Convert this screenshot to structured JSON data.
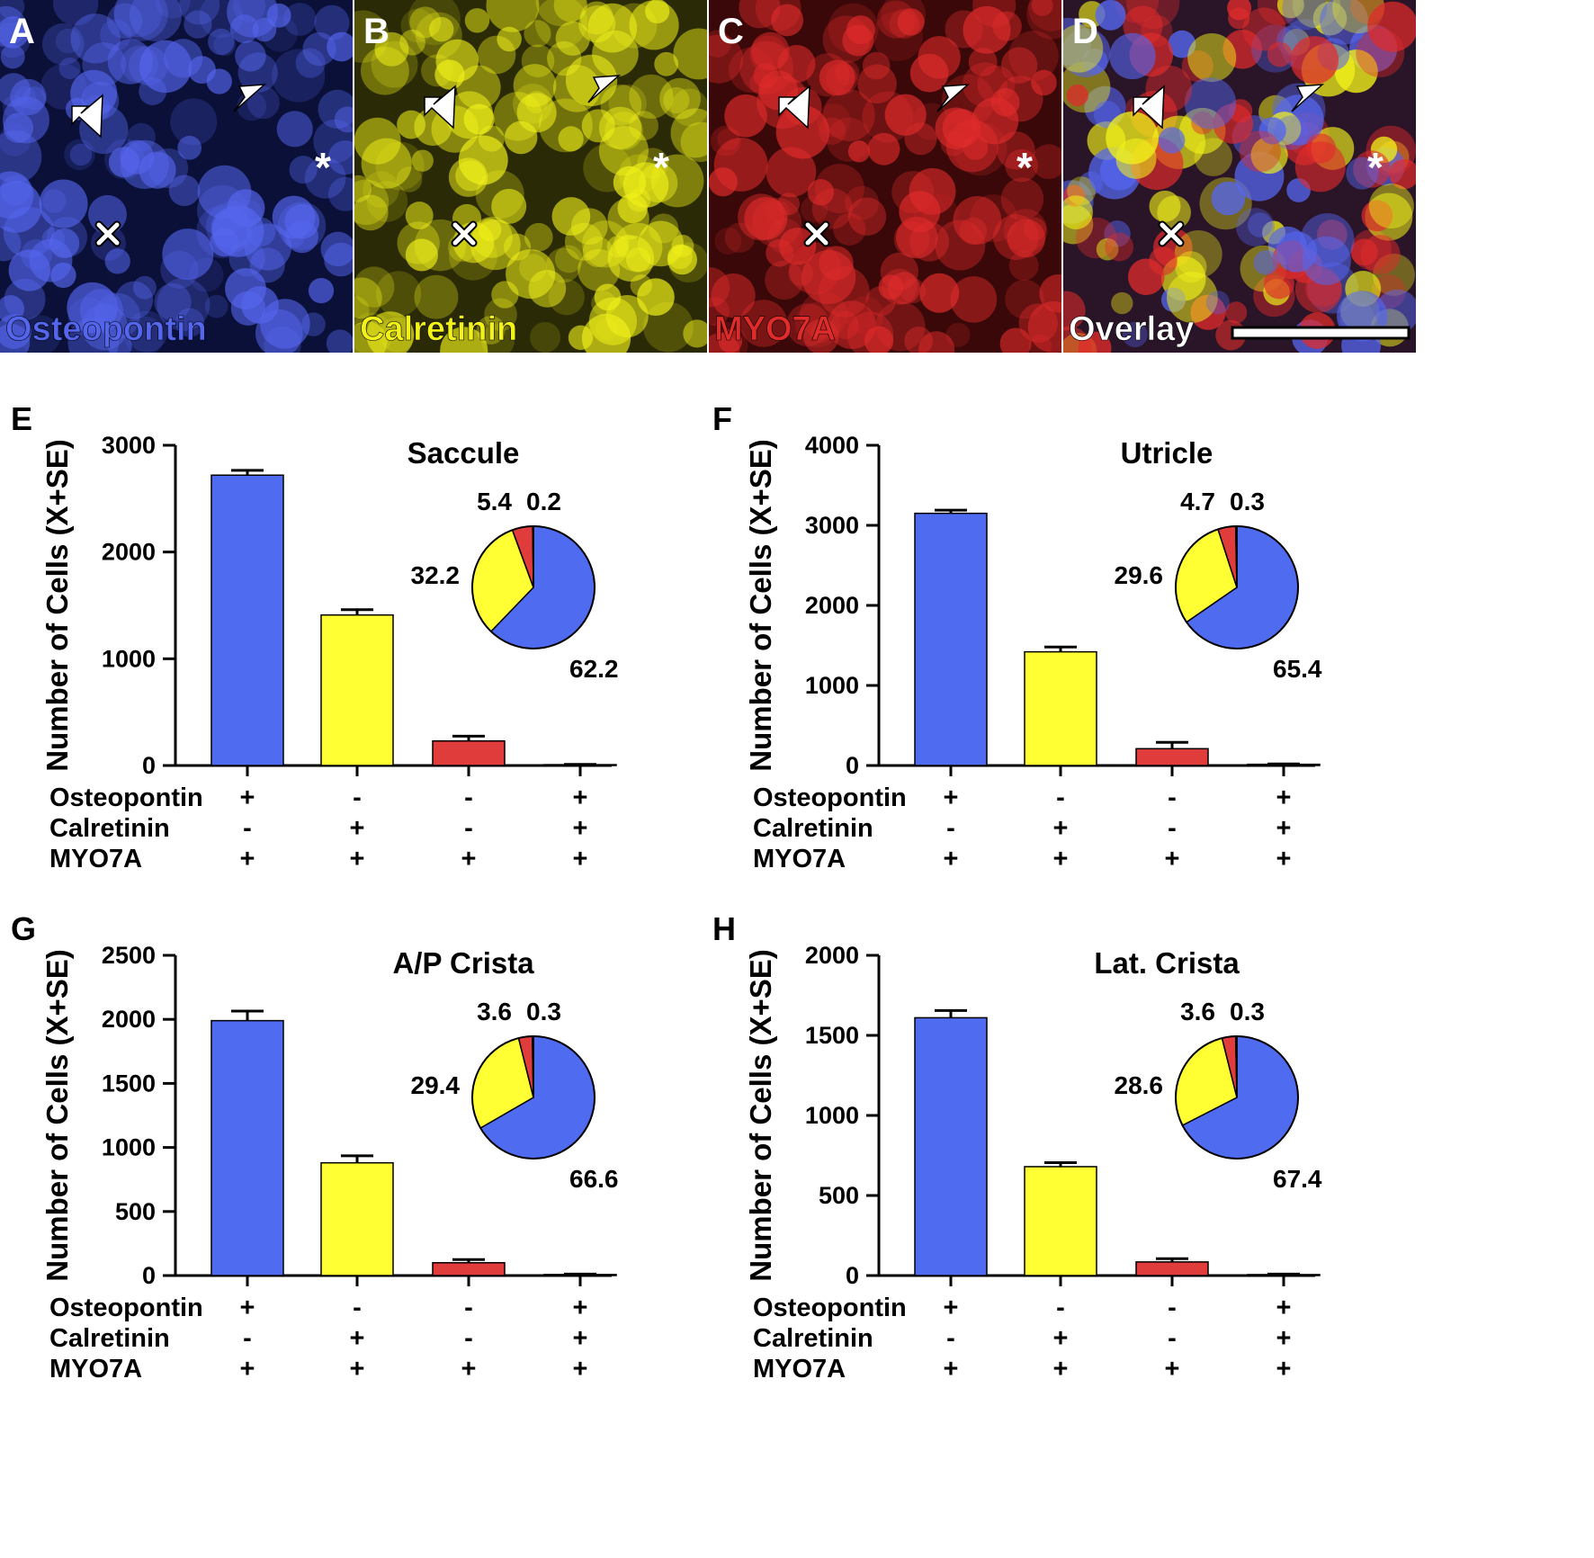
{
  "images": {
    "panels": [
      {
        "letter": "A",
        "channel": "Osteopontin",
        "color": "#5566ee",
        "bg": "#0a1038"
      },
      {
        "letter": "B",
        "channel": "Calretinin",
        "color": "#f2f21a",
        "bg": "#2a2a06"
      },
      {
        "letter": "C",
        "channel": "MYO7A",
        "color": "#e02b2b",
        "bg": "#3a0808"
      },
      {
        "letter": "D",
        "channel": "Overlay",
        "color": "#ffffff",
        "bg": "#2a1428"
      }
    ]
  },
  "colors": {
    "osteopontin": "#4f6bef",
    "calretinin": "#ffff33",
    "myo7a": "#e03c3c",
    "pie_blue": "#4f6bef",
    "pie_yellow": "#ffff33",
    "pie_red": "#e03c3c"
  },
  "row_labels": [
    "Osteopontin",
    "Calretinin",
    "MYO7A"
  ],
  "chart_data": [
    {
      "panel": "E",
      "type": "bar",
      "title": "Saccule",
      "ylabel": "Number of Cells (X+SE)",
      "ylim": [
        0,
        3000
      ],
      "yticks": [
        0,
        1000,
        2000,
        3000
      ],
      "values": [
        2720,
        1410,
        230,
        8
      ],
      "errors": [
        45,
        50,
        45,
        3
      ],
      "markers": [
        [
          "+",
          "-",
          "+"
        ],
        [
          "-",
          "+",
          "+"
        ],
        [
          "-",
          "-",
          "+"
        ],
        [
          "+",
          "+",
          "+"
        ]
      ],
      "pie": {
        "type": "pie",
        "values": [
          62.2,
          32.2,
          5.4,
          0.2
        ],
        "labels": [
          "62.2",
          "32.2",
          "5.4",
          "0.2"
        ]
      }
    },
    {
      "panel": "F",
      "type": "bar",
      "title": "Utricle",
      "ylabel": "Number of Cells (X+SE)",
      "ylim": [
        0,
        4000
      ],
      "yticks": [
        0,
        1000,
        2000,
        3000,
        4000
      ],
      "values": [
        3150,
        1420,
        210,
        15
      ],
      "errors": [
        40,
        60,
        80,
        5
      ],
      "markers": [
        [
          "+",
          "-",
          "+"
        ],
        [
          "-",
          "+",
          "+"
        ],
        [
          "-",
          "-",
          "+"
        ],
        [
          "+",
          "+",
          "+"
        ]
      ],
      "pie": {
        "type": "pie",
        "values": [
          65.4,
          29.6,
          4.7,
          0.3
        ],
        "labels": [
          "65.4",
          "29.6",
          "4.7",
          "0.3"
        ]
      }
    },
    {
      "panel": "G",
      "type": "bar",
      "title": "A/P Crista",
      "ylabel": "Number of Cells (X+SE)",
      "ylim": [
        0,
        2500
      ],
      "yticks": [
        0,
        500,
        1000,
        1500,
        2000,
        2500
      ],
      "values": [
        1990,
        880,
        100,
        8
      ],
      "errors": [
        75,
        55,
        25,
        3
      ],
      "markers": [
        [
          "+",
          "-",
          "+"
        ],
        [
          "-",
          "+",
          "+"
        ],
        [
          "-",
          "-",
          "+"
        ],
        [
          "+",
          "+",
          "+"
        ]
      ],
      "pie": {
        "type": "pie",
        "values": [
          66.6,
          29.4,
          3.6,
          0.3
        ],
        "labels": [
          "66.6",
          "29.4",
          "3.6",
          "0.3"
        ]
      }
    },
    {
      "panel": "H",
      "type": "bar",
      "title": "Lat. Crista",
      "ylabel": "Number of Cells (X+SE)",
      "ylim": [
        0,
        2000
      ],
      "yticks": [
        0,
        500,
        1000,
        1500,
        2000
      ],
      "values": [
        1610,
        680,
        85,
        6
      ],
      "errors": [
        45,
        25,
        20,
        3
      ],
      "markers": [
        [
          "+",
          "-",
          "+"
        ],
        [
          "-",
          "+",
          "+"
        ],
        [
          "-",
          "-",
          "+"
        ],
        [
          "+",
          "+",
          "+"
        ]
      ],
      "pie": {
        "type": "pie",
        "values": [
          67.4,
          28.6,
          3.6,
          0.3
        ],
        "labels": [
          "67.4",
          "28.6",
          "3.6",
          "0.3"
        ]
      }
    }
  ]
}
